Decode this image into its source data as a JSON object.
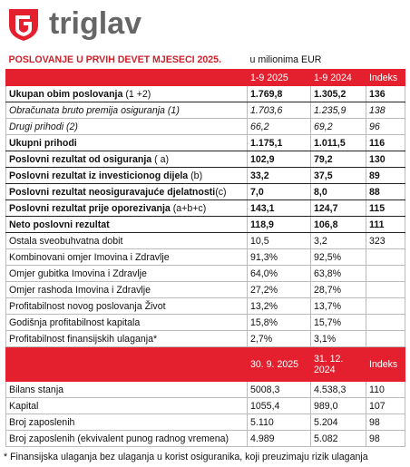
{
  "header": {
    "brand": "triglav"
  },
  "table": {
    "title": "POSLOVANJE U PRVIH DEVET MJESECI 2025.",
    "unit": "u milionima EUR",
    "columns": [
      "1-9 2025",
      "1-9 2024",
      "Indeks"
    ],
    "rows": [
      {
        "label": [
          "Ukupan obim poslovanja",
          " (1 +2)"
        ],
        "style": "bold",
        "values": [
          "1.769,8",
          "1.305,2",
          "136"
        ]
      },
      {
        "label": [
          "Obračunata bruto premija osiguranja (1)"
        ],
        "style": "italic",
        "values": [
          "1.703,6",
          "1.235,9",
          "138"
        ]
      },
      {
        "label": [
          "Drugi prihodi (2)"
        ],
        "style": "italic",
        "values": [
          "66,2",
          "69,2",
          "96"
        ]
      },
      {
        "label": [
          "Ukupni prihodi"
        ],
        "style": "bold",
        "values": [
          "1.175,1",
          "1.011,5",
          "116"
        ]
      },
      {
        "label": [
          "Poslovni rezultat od osiguranja",
          " ( a)"
        ],
        "style": "bold",
        "values": [
          "102,9",
          "79,2",
          "130"
        ]
      },
      {
        "label": [
          "Poslovni rezultat iz investicionog dijela",
          " (b)"
        ],
        "style": "bold",
        "values": [
          "33,2",
          "37,5",
          "89"
        ]
      },
      {
        "label": [
          "Poslovni rezultat neosiguravajuće djelatnosti",
          "(c)"
        ],
        "style": "bold",
        "values": [
          "7,0",
          "8,0",
          "88"
        ]
      },
      {
        "label": [
          "Poslovni rezultat prije oporezivanja",
          " (a+b+c)"
        ],
        "style": "bold",
        "values": [
          "143,1",
          "124,7",
          "115"
        ]
      },
      {
        "label": [
          "Neto poslovni rezultat"
        ],
        "style": "bold",
        "values": [
          "118,9",
          "106,8",
          "111"
        ]
      },
      {
        "label": [
          "Ostala sveobuhvatna dobit"
        ],
        "style": "normal",
        "values": [
          "10,5",
          "3,2",
          "323"
        ]
      },
      {
        "label": [
          "Kombinovani omjer Imovina i Zdravlje"
        ],
        "style": "normal",
        "values": [
          "91,3%",
          "92,5%"
        ]
      },
      {
        "label": [
          "Omjer  gubitka Imovina i Zdravlje"
        ],
        "style": "normal",
        "values": [
          "64,0%",
          "63,8%"
        ]
      },
      {
        "label": [
          "Omjer rashoda Imovina i Zdravlje"
        ],
        "style": "normal",
        "values": [
          "27,2%",
          "28,7%"
        ]
      },
      {
        "label": [
          "Profitabilnost novog poslovanja Život"
        ],
        "style": "normal",
        "values": [
          "13,2%",
          "13,7%"
        ]
      },
      {
        "label": [
          "Godišnja profitabilnost kapitala"
        ],
        "style": "normal",
        "values": [
          "15,8%",
          "15,7%"
        ]
      },
      {
        "label": [
          "Profitabilnost finansijskih ulaganja*"
        ],
        "style": "normal",
        "values": [
          "2,7%",
          "3,1%"
        ]
      }
    ],
    "columns2": [
      "30. 9. 2025",
      "31. 12. 2024",
      "Indeks"
    ],
    "rows2": [
      {
        "label": [
          "Bilans stanja"
        ],
        "style": "normal",
        "values": [
          "5008,3",
          "4.538,3",
          "110"
        ]
      },
      {
        "label": [
          "Kapital"
        ],
        "style": "normal",
        "values": [
          "1055,4",
          "989,0",
          "107"
        ]
      },
      {
        "label": [
          "Broj zaposlenih"
        ],
        "style": "normal",
        "values": [
          "5.110",
          "5.204",
          "98"
        ]
      },
      {
        "label": [
          "Broj zaposlenih (ekvivalent punog radnog vremena)"
        ],
        "style": "normal",
        "values": [
          "4.989",
          "5.082",
          "98"
        ]
      }
    ],
    "footnote": "* Finansijska ulaganja bez ulaganja u korist osiguranika, koji preuzimaju rizik ulaganja"
  }
}
